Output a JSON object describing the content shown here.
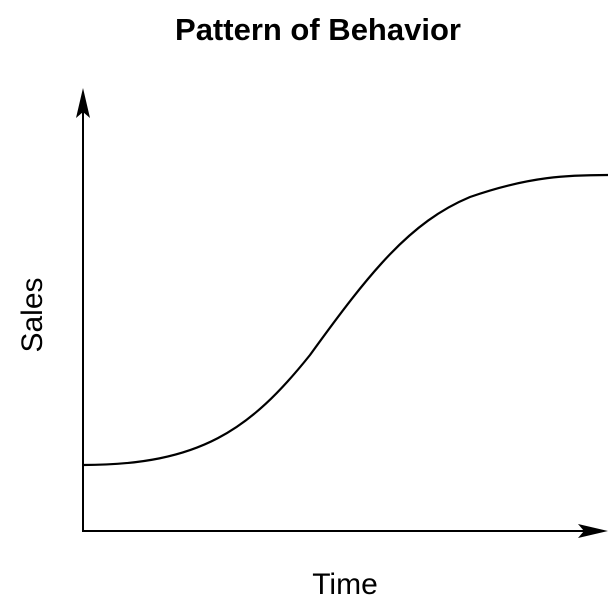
{
  "title": "Pattern of Behavior",
  "x_axis_label": "Time",
  "y_axis_label": "Sales"
}
